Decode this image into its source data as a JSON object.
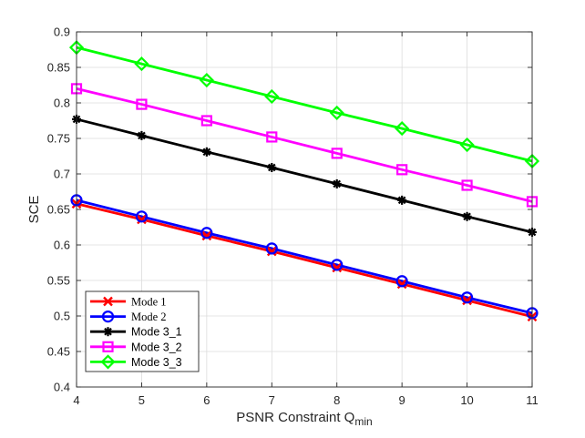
{
  "chart_data": {
    "type": "line",
    "title": "",
    "xlabel": "PSNR Constraint Q",
    "xlabel_subscript": "min",
    "ylabel": "SCE",
    "xlim": [
      4,
      11
    ],
    "ylim": [
      0.4,
      0.9
    ],
    "grid": true,
    "legend_position": "bottom-left",
    "x_ticks": [
      "4",
      "5",
      "6",
      "7",
      "8",
      "9",
      "10",
      "11"
    ],
    "y_ticks": [
      "0.4",
      "0.45",
      "0.5",
      "0.55",
      "0.6",
      "0.65",
      "0.7",
      "0.75",
      "0.8",
      "0.85",
      "0.9"
    ],
    "x": [
      4,
      5,
      6,
      7,
      8,
      9,
      10,
      11
    ],
    "series": [
      {
        "name": "Mode 1",
        "color": "#ff0000",
        "marker": "x",
        "legend_font": "serif",
        "values": [
          0.658,
          0.636,
          0.613,
          0.591,
          0.568,
          0.545,
          0.522,
          0.499
        ]
      },
      {
        "name": "Mode 2",
        "color": "#0000ff",
        "marker": "circle",
        "legend_font": "serif",
        "values": [
          0.663,
          0.64,
          0.617,
          0.595,
          0.572,
          0.549,
          0.526,
          0.504
        ]
      },
      {
        "name": "Mode 3_1",
        "color": "#000000",
        "marker": "star",
        "legend_font": "sans",
        "values": [
          0.777,
          0.754,
          0.731,
          0.709,
          0.686,
          0.663,
          0.64,
          0.618
        ]
      },
      {
        "name": "Mode 3_2",
        "color": "#ff00ff",
        "marker": "square",
        "legend_font": "sans",
        "values": [
          0.82,
          0.798,
          0.775,
          0.752,
          0.729,
          0.706,
          0.684,
          0.661
        ]
      },
      {
        "name": "Mode 3_3",
        "color": "#00ff00",
        "marker": "diamond",
        "legend_font": "sans",
        "values": [
          0.878,
          0.855,
          0.832,
          0.809,
          0.786,
          0.764,
          0.741,
          0.718
        ]
      }
    ]
  }
}
